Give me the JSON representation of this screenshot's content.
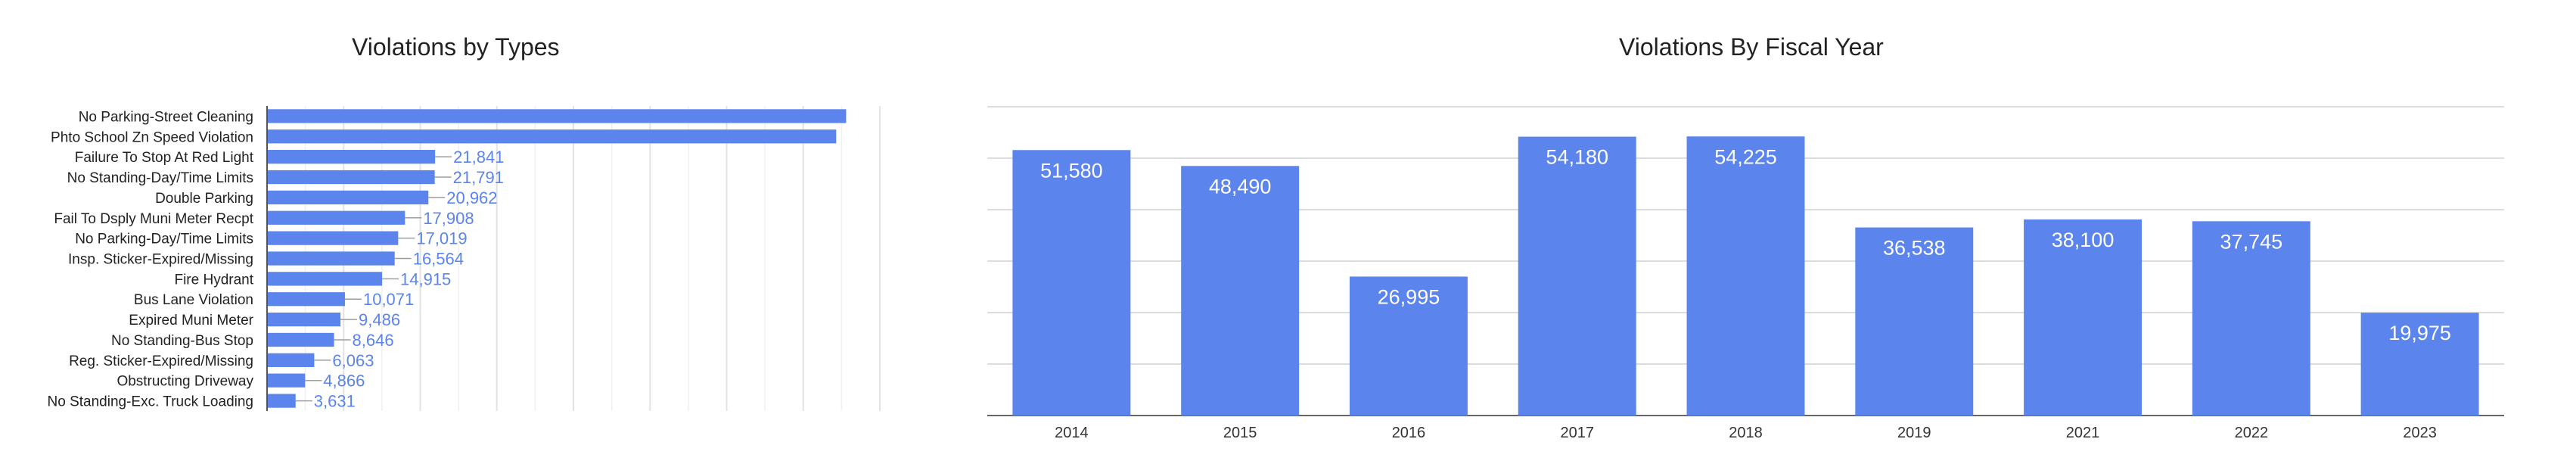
{
  "chart_data": [
    {
      "type": "bar",
      "orientation": "horizontal",
      "title": "Violations by Types",
      "categories": [
        "No Parking-Street Cleaning",
        "Phto School Zn Speed Violation",
        "Failure To Stop At Red Light",
        "No Standing-Day/Time Limits",
        "Double Parking",
        "Fail To Dsply Muni Meter Recpt",
        "No Parking-Day/Time Limits",
        "Insp. Sticker-Expired/Missing",
        "Fire Hydrant",
        "Bus Lane Violation",
        "Expired Muni Meter",
        "No Standing-Bus Stop",
        "Reg. Sticker-Expired/Missing",
        "Obstructing Driveway",
        "No Standing-Exc. Truck Loading"
      ],
      "values": [
        75500,
        74200,
        21841,
        21791,
        20962,
        17908,
        17019,
        16564,
        14915,
        10071,
        9486,
        8646,
        6063,
        4866,
        3631
      ],
      "data_labels": [
        "",
        "",
        "21,841",
        "21,791",
        "20,962",
        "17,908",
        "17,019",
        "16,564",
        "14,915",
        "10,071",
        "9,486",
        "8,646",
        "6,063",
        "4,866",
        "3,631"
      ],
      "xlim": [
        0,
        80000
      ],
      "grid": true,
      "color": "#5b84ec",
      "label_color": "#5b84ec"
    },
    {
      "type": "bar",
      "title": "Violations By Fiscal Year",
      "categories": [
        "2014",
        "2015",
        "2016",
        "2017",
        "2018",
        "2019",
        "2021",
        "2022",
        "2023"
      ],
      "values": [
        51580,
        48490,
        26995,
        54180,
        54225,
        36538,
        38100,
        37745,
        19975
      ],
      "data_labels": [
        "51,580",
        "48,490",
        "26,995",
        "54,180",
        "54,225",
        "36,538",
        "38,100",
        "37,745",
        "19,975"
      ],
      "ylim": [
        0,
        60000
      ],
      "grid": true,
      "color": "#5b84ec",
      "label_color": "#ffffff"
    }
  ]
}
